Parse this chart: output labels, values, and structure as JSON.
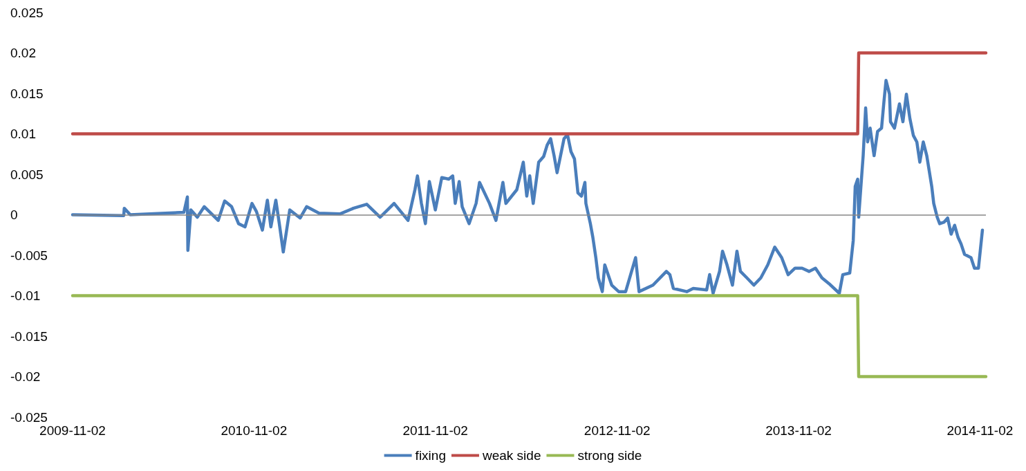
{
  "chart_data": {
    "type": "line",
    "ylim": [
      -0.025,
      0.025
    ],
    "yticks": [
      -0.025,
      -0.02,
      -0.015,
      -0.01,
      -0.005,
      0,
      0.005,
      0.01,
      0.015,
      0.02,
      0.025
    ],
    "xlim": [
      "2009-11-02",
      "2014-11-14"
    ],
    "xticks": [
      "2009-11-02",
      "2010-11-02",
      "2011-11-02",
      "2012-11-02",
      "2013-11-02",
      "2014-11-02"
    ],
    "grid": false,
    "ref_lines": [
      {
        "axis": "y",
        "value": 0,
        "color": "#868686"
      }
    ],
    "legend": "bottom",
    "marker": "none",
    "line_style": "solid",
    "series": [
      {
        "name": "fixing",
        "color": "#4a7ebb",
        "x": [
          "2009-11-02",
          "2010-02-13",
          "2010-02-14",
          "2010-02-26",
          "2010-06-14",
          "2010-06-21",
          "2010-06-22",
          "2010-06-28",
          "2010-07-11",
          "2010-07-25",
          "2010-08-22",
          "2010-09-04",
          "2010-09-18",
          "2010-10-02",
          "2010-10-15",
          "2010-10-29",
          "2010-11-07",
          "2010-11-19",
          "2010-11-29",
          "2010-12-06",
          "2010-12-16",
          "2010-12-23",
          "2010-12-31",
          "2011-01-13",
          "2011-02-03",
          "2011-02-16",
          "2011-03-13",
          "2011-04-24",
          "2011-05-21",
          "2011-06-17",
          "2011-07-14",
          "2011-08-11",
          "2011-09-08",
          "2011-09-22",
          "2011-09-27",
          "2011-10-05",
          "2011-10-13",
          "2011-10-21",
          "2011-11-02",
          "2011-11-15",
          "2011-11-29",
          "2011-12-07",
          "2011-12-12",
          "2011-12-20",
          "2011-12-26",
          "2012-01-09",
          "2012-01-23",
          "2012-01-30",
          "2012-02-19",
          "2012-03-03",
          "2012-03-17",
          "2012-03-23",
          "2012-04-14",
          "2012-04-27",
          "2012-05-04",
          "2012-05-10",
          "2012-05-17",
          "2012-05-28",
          "2012-06-07",
          "2012-06-14",
          "2012-06-21",
          "2012-06-28",
          "2012-07-04",
          "2012-07-18",
          "2012-07-25",
          "2012-08-01",
          "2012-08-08",
          "2012-08-15",
          "2012-08-22",
          "2012-08-29",
          "2012-08-31",
          "2012-09-09",
          "2012-09-14",
          "2012-09-20",
          "2012-09-25",
          "2012-10-03",
          "2012-10-08",
          "2012-10-22",
          "2012-11-05",
          "2012-11-19",
          "2012-12-09",
          "2012-12-16",
          "2013-01-13",
          "2013-02-09",
          "2013-02-16",
          "2013-02-23",
          "2013-03-22",
          "2013-04-04",
          "2013-05-01",
          "2013-05-07",
          "2013-05-14",
          "2013-05-27",
          "2013-06-02",
          "2013-06-11",
          "2013-06-22",
          "2013-07-01",
          "2013-07-08",
          "2013-07-21",
          "2013-08-04",
          "2013-08-18",
          "2013-09-01",
          "2013-09-15",
          "2013-09-29",
          "2013-10-12",
          "2013-10-26",
          "2013-11-09",
          "2013-11-23",
          "2013-12-06",
          "2013-12-19",
          "2014-01-02",
          "2014-01-23",
          "2014-01-30",
          "2014-02-13",
          "2014-02-20",
          "2014-02-24",
          "2014-03-01",
          "2014-03-03",
          "2014-03-07",
          "2014-03-12",
          "2014-03-17",
          "2014-03-21",
          "2014-03-26",
          "2014-04-03",
          "2014-04-10",
          "2014-04-18",
          "2014-04-23",
          "2014-04-27",
          "2014-05-04",
          "2014-05-06",
          "2014-05-14",
          "2014-05-24",
          "2014-05-31",
          "2014-06-07",
          "2014-06-14",
          "2014-06-21",
          "2014-06-28",
          "2014-07-04",
          "2014-07-11",
          "2014-07-18",
          "2014-07-28",
          "2014-08-01",
          "2014-08-08",
          "2014-08-13",
          "2014-08-22",
          "2014-08-29",
          "2014-09-05",
          "2014-09-12",
          "2014-09-19",
          "2014-09-25",
          "2014-10-02",
          "2014-10-15",
          "2014-10-22",
          "2014-10-30",
          "2014-11-07"
        ],
        "values": [
          0,
          -0.0001,
          0.0008,
          0,
          0.0003,
          0.0022,
          -0.0044,
          0.0006,
          -0.0003,
          0.001,
          -0.0007,
          0.0017,
          0.001,
          -0.0011,
          -0.0015,
          0.0014,
          0.0004,
          -0.0019,
          0.0018,
          -0.0015,
          0.0018,
          -0.0011,
          -0.0046,
          0.0006,
          -0.0004,
          0.001,
          0.0002,
          0.0001,
          0.0008,
          0.0013,
          -0.0003,
          0.0014,
          -0.0007,
          0.0031,
          0.0048,
          0.0014,
          -0.0011,
          0.0041,
          0.0006,
          0.0046,
          0.0044,
          0.0048,
          0.0014,
          0.0041,
          0.001,
          -0.0011,
          0.0014,
          0.004,
          0.0014,
          -0.0007,
          0.004,
          0.0014,
          0.0031,
          0.0065,
          0.0023,
          0.0048,
          0.0014,
          0.0065,
          0.0072,
          0.0086,
          0.0094,
          0.0073,
          0.0052,
          0.0094,
          0.0099,
          0.0078,
          0.0069,
          0.0027,
          0.0023,
          0.004,
          0.0014,
          -0.0011,
          -0.0028,
          -0.0053,
          -0.0078,
          -0.0095,
          -0.0062,
          -0.0087,
          -0.0095,
          -0.0095,
          -0.0053,
          -0.0095,
          -0.0087,
          -0.007,
          -0.0074,
          -0.0091,
          -0.0095,
          -0.0091,
          -0.0093,
          -0.0074,
          -0.0097,
          -0.007,
          -0.0045,
          -0.0062,
          -0.0087,
          -0.0045,
          -0.007,
          -0.0078,
          -0.0087,
          -0.0078,
          -0.0062,
          -0.004,
          -0.0053,
          -0.0074,
          -0.0066,
          -0.0066,
          -0.007,
          -0.0066,
          -0.0078,
          -0.0085,
          -0.0097,
          -0.0074,
          -0.0072,
          -0.0032,
          0.0035,
          0.0044,
          -0.0003,
          0.0031,
          0.0073,
          0.0132,
          0.009,
          0.0107,
          0.0073,
          0.0103,
          0.0107,
          0.0141,
          0.0166,
          0.0149,
          0.0115,
          0.0107,
          0.0137,
          0.0115,
          0.0149,
          0.0119,
          0.0098,
          0.009,
          0.0065,
          0.009,
          0.0073,
          0.0035,
          0.0014,
          -0.0003,
          -0.0011,
          -0.0009,
          -0.0004,
          -0.0024,
          -0.0013,
          -0.0028,
          -0.0036,
          -0.0049,
          -0.0053,
          -0.0066,
          -0.0066,
          -0.0019
        ]
      },
      {
        "name": "weak side",
        "color": "#be4b48",
        "x": [
          "2009-11-02",
          "2014-03-01",
          "2014-03-03",
          "2014-11-14"
        ],
        "values": [
          0.01,
          0.01,
          0.02,
          0.02
        ]
      },
      {
        "name": "strong side",
        "color": "#98b954",
        "x": [
          "2009-11-02",
          "2014-03-01",
          "2014-03-03",
          "2014-11-14"
        ],
        "values": [
          -0.01,
          -0.01,
          -0.02,
          -0.02
        ]
      }
    ]
  }
}
